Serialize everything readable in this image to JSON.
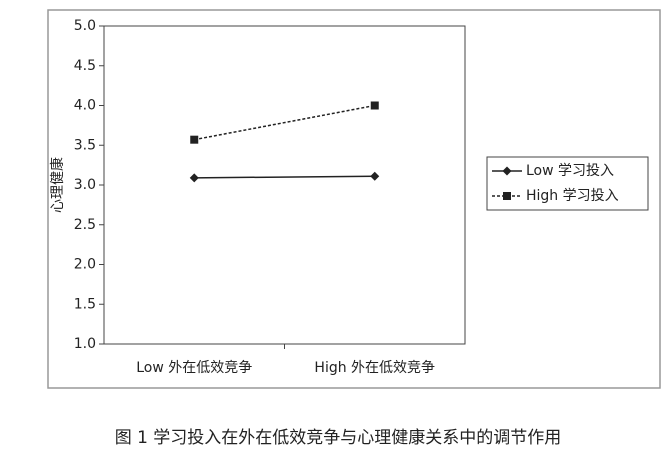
{
  "chart_data": {
    "type": "line",
    "y_label": "心理健康",
    "caption": "图 1  学习投入在外在低效竞争与心理健康关系中的调节作用",
    "categories": [
      "Low 外在低效竞争",
      "High 外在低效竞争"
    ],
    "series": [
      {
        "name": "Low 学习投入",
        "color": "#222222",
        "marker": "diamond",
        "dash": "solid",
        "values": [
          3.09,
          3.11
        ]
      },
      {
        "name": "High 学习投入",
        "color": "#222222",
        "marker": "square",
        "dash": "dashed",
        "values": [
          3.57,
          4.0
        ]
      }
    ],
    "ylim": [
      1,
      5
    ],
    "yticks": [
      {
        "value": 1,
        "label": "1.0"
      },
      {
        "value": 1.5,
        "label": "1.5"
      },
      {
        "value": 2,
        "label": "2.0"
      },
      {
        "value": 2.5,
        "label": "2.5"
      },
      {
        "value": 3,
        "label": "3.0"
      },
      {
        "value": 3.5,
        "label": "3.5"
      },
      {
        "value": 4,
        "label": "4.0"
      },
      {
        "value": 4.5,
        "label": "4.5"
      },
      {
        "value": 5,
        "label": "5.0"
      }
    ],
    "legend": "right"
  }
}
